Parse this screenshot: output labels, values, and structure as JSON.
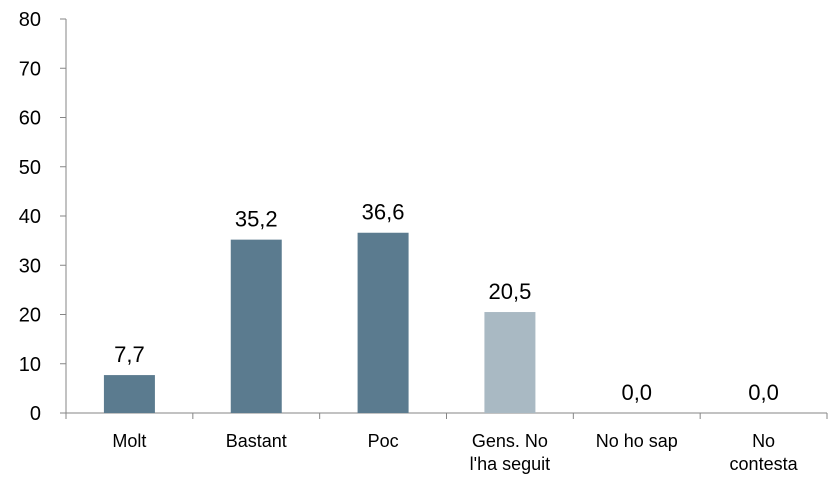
{
  "chart_data": {
    "type": "bar",
    "categories": [
      [
        "Molt"
      ],
      [
        "Bastant"
      ],
      [
        "Poc"
      ],
      [
        "Gens. No",
        "l'ha seguit"
      ],
      [
        "No ho sap"
      ],
      [
        "No",
        "contesta"
      ]
    ],
    "values": [
      7.7,
      35.2,
      36.6,
      20.5,
      0.0,
      0.0
    ],
    "data_labels": [
      "7,7",
      "35,2",
      "36,6",
      "20,5",
      "0,0",
      "0,0"
    ],
    "bar_colors": [
      "#5b7b8f",
      "#5b7b8f",
      "#5b7b8f",
      "#a9b9c3",
      "#5b7b8f",
      "#5b7b8f"
    ],
    "ylim": [
      0,
      80
    ],
    "yticks": [
      0,
      10,
      20,
      30,
      40,
      50,
      60,
      70,
      80
    ],
    "grid": false,
    "legend": "none"
  }
}
